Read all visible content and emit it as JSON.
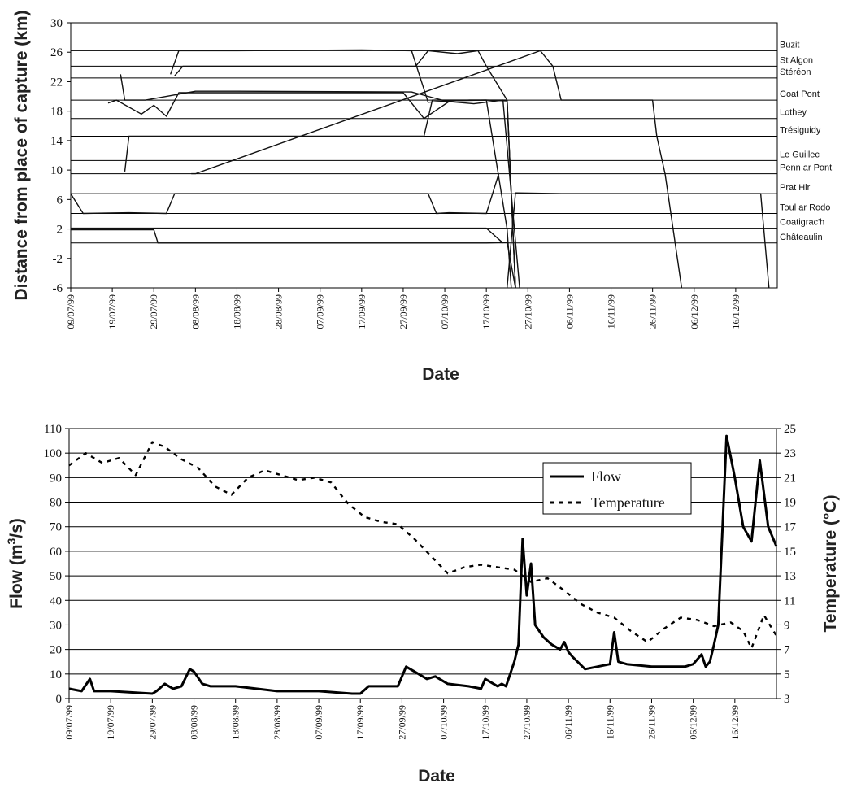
{
  "chart_data": [
    {
      "type": "line",
      "ylabel": "Distance from place of capture (km)",
      "xlabel": "Date",
      "ylim": [
        -6,
        30
      ],
      "yticks": [
        -6,
        -2,
        2,
        6,
        10,
        14,
        18,
        22,
        26,
        30
      ],
      "xlim": [
        "09/07/99",
        "26/12/99"
      ],
      "xtick_labels": [
        "09/07/99",
        "19/07/99",
        "29/07/99",
        "08/08/99",
        "18/08/99",
        "28/08/99",
        "07/09/99",
        "17/09/99",
        "27/09/99",
        "07/10/99",
        "17/10/99",
        "27/10/99",
        "06/11/99",
        "16/11/99",
        "26/11/99",
        "06/12/99",
        "16/12/99"
      ],
      "grid": false,
      "sites": [
        {
          "name": "Buzit",
          "distance": 26.2
        },
        {
          "name": "St Algon",
          "distance": 24.1
        },
        {
          "name": "Stéréon",
          "distance": 22.5
        },
        {
          "name": "Coat Pont",
          "distance": 19.5
        },
        {
          "name": "Lothey",
          "distance": 17.0
        },
        {
          "name": "Trésiguidy",
          "distance": 14.6
        },
        {
          "name": "Le Guillec",
          "distance": 11.3
        },
        {
          "name": "Penn ar Pont",
          "distance": 9.5
        },
        {
          "name": "Prat Hir",
          "distance": 6.8
        },
        {
          "name": "Toul ar Rodo",
          "distance": 4.1
        },
        {
          "name": "Coatigrac'h",
          "distance": 2.1
        },
        {
          "name": "Châteaulin",
          "distance": 0.1
        }
      ],
      "series": [
        {
          "x": [
            "02/08/99",
            "04/08/99",
            "18/08/99",
            "17/09/99",
            "29/09/99",
            "03/10/99",
            "05/10/99",
            "13/10/99",
            "17/10/99",
            "22/10/99",
            "23/10/99"
          ],
          "values": [
            23,
            26.2,
            26.2,
            26.3,
            26.2,
            19.2,
            19.3,
            19.5,
            19.5,
            2,
            -6
          ]
        },
        {
          "x": [
            "03/08/99",
            "05/08/99",
            "30/09/99",
            "03/10/99",
            "10/10/99",
            "15/10/99",
            "17/10/99",
            "22/10/99",
            "24/10/99"
          ],
          "values": [
            22.8,
            24.1,
            24.1,
            26.2,
            25.8,
            26.2,
            24.1,
            19.5,
            -6
          ]
        },
        {
          "x": [
            "21/07/99",
            "22/07/99",
            "27/07/99",
            "08/08/99",
            "18/08/99",
            "29/09/99",
            "07/10/99",
            "17/10/99",
            "22/10/99",
            "24/10/99"
          ],
          "values": [
            23,
            19.5,
            19.5,
            20.7,
            20.7,
            20.6,
            19.4,
            19.5,
            19.5,
            -6
          ]
        },
        {
          "x": [
            "18/07/99",
            "20/07/99",
            "26/07/99",
            "29/07/99",
            "01/08/99",
            "04/08/99",
            "27/09/99",
            "02/10/99",
            "08/10/99",
            "12/10/99",
            "14/10/99",
            "21/10/99",
            "25/10/99"
          ],
          "values": [
            19.1,
            19.5,
            17.6,
            18.8,
            17.3,
            20.5,
            20.5,
            17.0,
            19.3,
            19.1,
            19.0,
            19.5,
            -6
          ]
        },
        {
          "x": [
            "22/07/99",
            "23/07/99",
            "02/10/99",
            "04/10/99",
            "17/10/99",
            "22/10/99",
            "24/10/99"
          ],
          "values": [
            9.8,
            14.6,
            14.6,
            19.5,
            19.5,
            19.4,
            -6
          ]
        },
        {
          "x": [
            "07/08/99",
            "08/08/99",
            "30/10/99",
            "02/11/99",
            "04/11/99",
            "26/11/99",
            "27/11/99",
            "29/11/99",
            "03/12/99"
          ],
          "values": [
            9.5,
            9.5,
            26.2,
            24.1,
            19.5,
            19.5,
            14.6,
            9.5,
            -6
          ]
        },
        {
          "x": [
            "09/07/99",
            "12/07/99",
            "23/07/99",
            "01/08/99",
            "03/08/99",
            "04/08/99",
            "03/10/99",
            "05/10/99",
            "08/10/99",
            "17/10/99",
            "20/10/99"
          ],
          "values": [
            6.8,
            4.1,
            4.2,
            4.1,
            6.8,
            6.8,
            6.8,
            4.1,
            4.2,
            4.1,
            9.5
          ]
        },
        {
          "x": [
            "22/10/99",
            "24/10/99",
            "04/11/99",
            "14/11/99",
            "24/11/99",
            "14/12/99",
            "22/12/99",
            "24/12/99"
          ],
          "values": [
            -6,
            6.9,
            6.8,
            6.8,
            6.8,
            6.8,
            6.8,
            -6
          ]
        },
        {
          "x": [
            "09/07/99",
            "12/07/99",
            "31/07/99",
            "02/10/99",
            "07/10/99",
            "17/10/99",
            "21/10/99"
          ],
          "values": [
            2.1,
            2.1,
            2.1,
            2.1,
            2.1,
            2.1,
            0.1
          ]
        },
        {
          "x": [
            "09/07/99",
            "29/07/99",
            "30/07/99",
            "06/10/99",
            "07/10/99",
            "17/10/99",
            "22/10/99",
            "24/10/99"
          ],
          "values": [
            1.9,
            1.9,
            0.1,
            0.1,
            0.1,
            0.1,
            0.2,
            -6
          ]
        }
      ]
    },
    {
      "type": "line",
      "xlabel": "Date",
      "ylabel": "Flow (m³/s)",
      "ylabel_parts": {
        "pre": "Flow (m",
        "sup": "3",
        "post": "/s)"
      },
      "y2label": "Temperature (°C)",
      "ylim": [
        0,
        110
      ],
      "yticks": [
        0,
        10,
        20,
        30,
        40,
        50,
        60,
        70,
        80,
        90,
        100,
        110
      ],
      "y2lim": [
        3,
        25
      ],
      "y2ticks": [
        3,
        5,
        7,
        9,
        11,
        13,
        15,
        17,
        19,
        21,
        23,
        25
      ],
      "xlim": [
        "09/07/99",
        "26/12/99"
      ],
      "xtick_labels": [
        "09/07/99",
        "19/07/99",
        "29/07/99",
        "08/08/99",
        "18/08/99",
        "28/08/99",
        "07/09/99",
        "17/09/99",
        "27/09/99",
        "07/10/99",
        "17/10/99",
        "27/10/99",
        "06/11/99",
        "16/11/99",
        "26/11/99",
        "06/12/99",
        "16/12/99"
      ],
      "grid": "horizontal",
      "legend_position": "upper-right",
      "series": [
        {
          "name": "Flow",
          "style": "solid",
          "x": [
            "09/07/99",
            "12/07/99",
            "14/07/99",
            "15/07/99",
            "16/07/99",
            "19/07/99",
            "29/07/99",
            "30/07/99",
            "01/08/99",
            "03/08/99",
            "05/08/99",
            "07/08/99",
            "08/08/99",
            "10/08/99",
            "12/08/99",
            "18/08/99",
            "28/08/99",
            "07/09/99",
            "15/09/99",
            "17/09/99",
            "19/09/99",
            "21/09/99",
            "26/09/99",
            "28/09/99",
            "30/09/99",
            "03/10/99",
            "05/10/99",
            "08/10/99",
            "13/10/99",
            "16/10/99",
            "17/10/99",
            "20/10/99",
            "21/10/99",
            "22/10/99",
            "24/10/99",
            "25/10/99",
            "26/10/99",
            "27/10/99",
            "28/10/99",
            "29/10/99",
            "31/10/99",
            "02/11/99",
            "04/11/99",
            "05/11/99",
            "06/11/99",
            "07/11/99",
            "10/11/99",
            "16/11/99",
            "17/11/99",
            "18/11/99",
            "20/11/99",
            "26/11/99",
            "01/12/99",
            "04/12/99",
            "06/12/99",
            "08/12/99",
            "09/12/99",
            "10/12/99",
            "11/12/99",
            "12/12/99",
            "14/12/99",
            "16/12/99",
            "18/12/99",
            "20/12/99",
            "22/12/99",
            "24/12/99",
            "26/12/99"
          ],
          "values": [
            4,
            3,
            8,
            3,
            3,
            3,
            2,
            3,
            6,
            4,
            5,
            12,
            11,
            6,
            5,
            5,
            3,
            3,
            2,
            2,
            5,
            5,
            5,
            13,
            11,
            8,
            9,
            6,
            5,
            4,
            8,
            5,
            6,
            5,
            15,
            22,
            65,
            42,
            55,
            30,
            25,
            22,
            20,
            23,
            19,
            17,
            12,
            14,
            27,
            15,
            14,
            13,
            13,
            13,
            14,
            18,
            13,
            15,
            22,
            30,
            107,
            90,
            70,
            64,
            97,
            70,
            62
          ]
        },
        {
          "name": "Temperature",
          "style": "dotted",
          "x": [
            "09/07/99",
            "13/07/99",
            "17/07/99",
            "21/07/99",
            "25/07/99",
            "29/07/99",
            "01/08/99",
            "05/08/99",
            "09/08/99",
            "13/08/99",
            "17/08/99",
            "21/08/99",
            "25/08/99",
            "29/08/99",
            "02/09/99",
            "06/09/99",
            "10/09/99",
            "14/09/99",
            "18/09/99",
            "22/09/99",
            "26/09/99",
            "30/09/99",
            "04/10/99",
            "08/10/99",
            "12/10/99",
            "16/10/99",
            "20/10/99",
            "24/10/99",
            "28/10/99",
            "01/11/99",
            "05/11/99",
            "09/11/99",
            "13/11/99",
            "17/11/99",
            "21/11/99",
            "25/11/99",
            "29/11/99",
            "03/12/99",
            "07/12/99",
            "11/12/99",
            "15/12/99",
            "18/12/99",
            "20/12/99",
            "23/12/99",
            "26/12/99"
          ],
          "values": [
            22.0,
            23.0,
            22.2,
            22.6,
            21.2,
            23.9,
            23.5,
            22.5,
            21.8,
            20.3,
            19.6,
            21.0,
            21.6,
            21.2,
            20.8,
            21.0,
            20.6,
            18.9,
            17.8,
            17.4,
            17.2,
            16.0,
            14.6,
            13.2,
            13.7,
            13.9,
            13.7,
            13.5,
            12.5,
            12.8,
            11.8,
            10.7,
            10.0,
            9.6,
            8.5,
            7.6,
            8.7,
            9.6,
            9.4,
            8.9,
            9.2,
            8.5,
            7.1,
            9.8,
            8.1
          ]
        }
      ]
    }
  ]
}
